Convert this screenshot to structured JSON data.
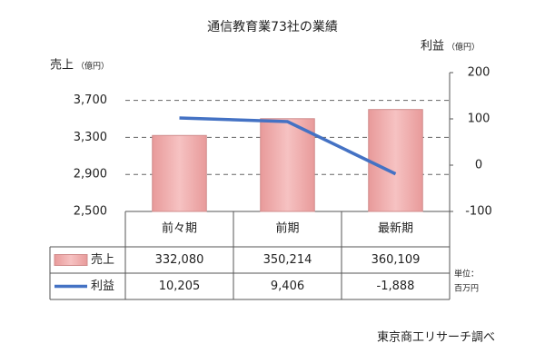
{
  "chart_data": {
    "type": "bar",
    "title": "通信教育業73社の業績",
    "y_label": "売上",
    "y_unit": "（億円）",
    "y2_label": "利益",
    "y2_unit": "（億円）",
    "categories": [
      "前々期",
      "前期",
      "最新期"
    ],
    "series": [
      {
        "name": "売上",
        "type": "bar",
        "color": "#f2a9a9",
        "values": [
          3320.8,
          3502.14,
          3601.09
        ],
        "value_labels": [
          "332,080",
          "350,214",
          "360,109"
        ]
      },
      {
        "name": "利益",
        "type": "line",
        "axis": "y2",
        "color": "#4472c4",
        "values": [
          102.05,
          94.06,
          -18.88
        ],
        "value_labels": [
          "10,205",
          "9,406",
          "-1,888"
        ]
      }
    ],
    "ylim": [
      2500,
      4000
    ],
    "yticks": [
      {
        "value": 2500,
        "label": "2,500"
      },
      {
        "value": 2900,
        "label": "2,900"
      },
      {
        "value": 3300,
        "label": "3,300"
      },
      {
        "value": 3700,
        "label": "3,700"
      }
    ],
    "y2lim": [
      -100,
      200
    ],
    "y2ticks": [
      -100,
      0,
      100,
      200
    ],
    "grid": true,
    "unit_note": [
      "単位：",
      "百万円"
    ],
    "source": "東京商工リサーチ調べ"
  }
}
